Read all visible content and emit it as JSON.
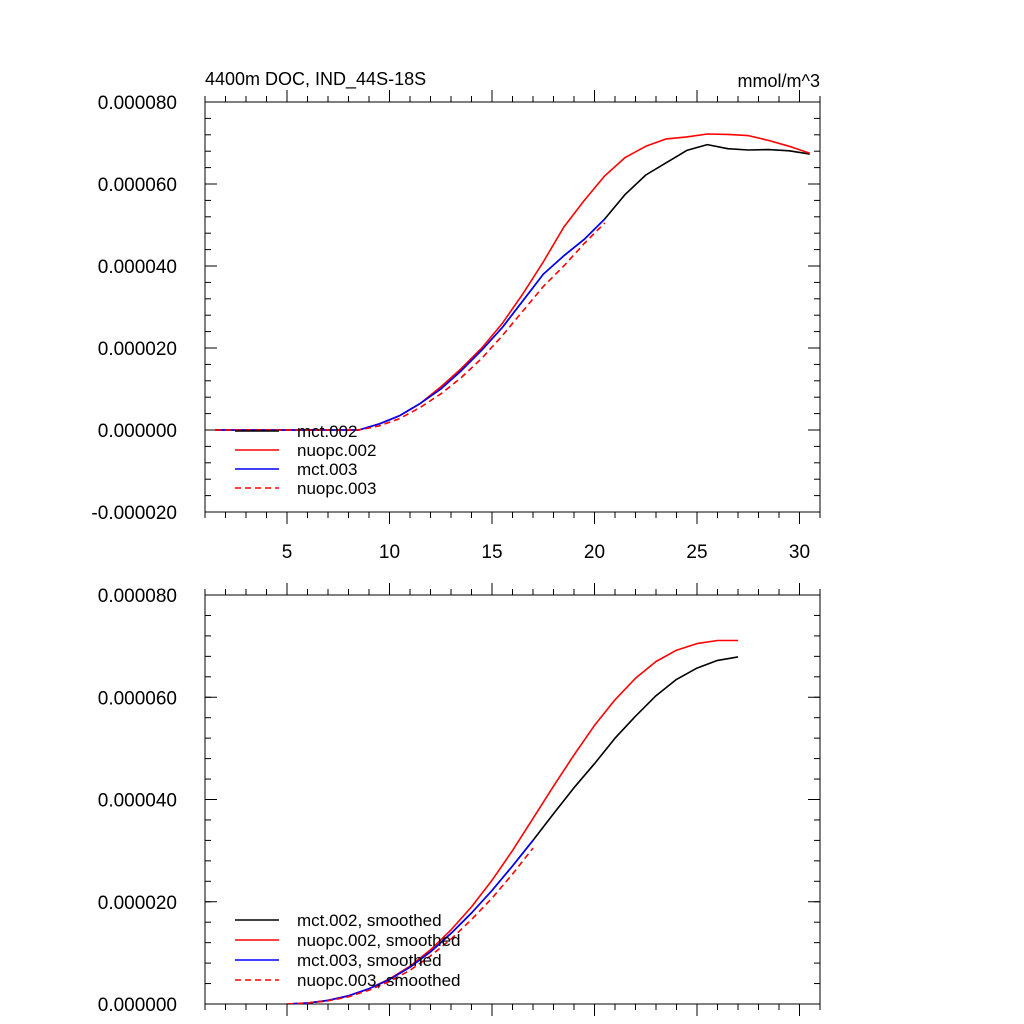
{
  "chart_data": [
    {
      "type": "line",
      "title": "4400m DOC, IND_44S-18S",
      "units": "mmol/m^3",
      "xlim": [
        1,
        31
      ],
      "ylim": [
        -2e-05,
        8e-05
      ],
      "xticks": [
        5,
        10,
        15,
        20,
        25,
        30
      ],
      "xtick_labels": [
        "5",
        "10",
        "15",
        "20",
        "25",
        "30"
      ],
      "yticks": [
        -2e-05,
        0,
        2e-05,
        4e-05,
        6e-05,
        8e-05
      ],
      "ytick_labels": [
        "-0.000020",
        "0.000000",
        "0.000020",
        "0.000040",
        "0.000060",
        "0.000080"
      ],
      "legend_position": "bottom-left",
      "series": [
        {
          "name": "mct.002",
          "color": "#000000",
          "dash": "solid",
          "x": [
            1.5,
            2.5,
            3.5,
            4.5,
            5.5,
            6.5,
            7.5,
            8.5,
            9.5,
            10.5,
            11.5,
            12.5,
            13.5,
            14.5,
            15.5,
            16.5,
            17.5,
            18.5,
            19.5,
            20.5,
            21.5,
            22.5,
            23.5,
            24.5,
            25.5,
            26.5,
            27.5,
            28.5,
            29.5,
            30.5
          ],
          "values": [
            0,
            0,
            0,
            0,
            0,
            0,
            0,
            0,
            1.5e-06,
            3.5e-06,
            6.5e-06,
            1e-05,
            1.45e-05,
            1.95e-05,
            2.5e-05,
            3.15e-05,
            3.8e-05,
            4.25e-05,
            4.65e-05,
            5.15e-05,
            5.75e-05,
            6.22e-05,
            6.52e-05,
            6.82e-05,
            6.96e-05,
            6.86e-05,
            6.83e-05,
            6.84e-05,
            6.81e-05,
            6.73e-05
          ]
        },
        {
          "name": "nuopc.002",
          "color": "#ff0000",
          "dash": "solid",
          "x": [
            1.5,
            2.5,
            3.5,
            4.5,
            5.5,
            6.5,
            7.5,
            8.5,
            9.5,
            10.5,
            11.5,
            12.5,
            13.5,
            14.5,
            15.5,
            16.5,
            17.5,
            18.5,
            19.5,
            20.5,
            21.5,
            22.5,
            23.5,
            24.5,
            25.5,
            26.5,
            27.5,
            28.5,
            29.5,
            30.5
          ],
          "values": [
            0,
            0,
            0,
            0,
            0,
            0,
            0,
            0,
            1.5e-06,
            3.5e-06,
            6.5e-06,
            1.05e-05,
            1.5e-05,
            2e-05,
            2.6e-05,
            3.32e-05,
            4.1e-05,
            4.95e-05,
            5.6e-05,
            6.2e-05,
            6.65e-05,
            6.92e-05,
            7.1e-05,
            7.15e-05,
            7.22e-05,
            7.21e-05,
            7.18e-05,
            7.06e-05,
            6.92e-05,
            6.75e-05
          ]
        },
        {
          "name": "mct.003",
          "color": "#0000ff",
          "dash": "solid",
          "x": [
            1.5,
            2.5,
            3.5,
            4.5,
            5.5,
            6.5,
            7.5,
            8.5,
            9.5,
            10.5,
            11.5,
            12.5,
            13.5,
            14.5,
            15.5,
            16.5,
            17.5,
            18.5,
            19.5,
            20.5
          ],
          "values": [
            0,
            0,
            0,
            0,
            0,
            0,
            0,
            0,
            1.5e-06,
            3.5e-06,
            6.5e-06,
            1e-05,
            1.45e-05,
            1.95e-05,
            2.5e-05,
            3.15e-05,
            3.8e-05,
            4.25e-05,
            4.65e-05,
            5.15e-05
          ]
        },
        {
          "name": "nuopc.003",
          "color": "#ff0000",
          "dash": "dashed",
          "x": [
            1.5,
            2.5,
            3.5,
            4.5,
            5.5,
            6.5,
            7.5,
            8.5,
            9.5,
            10.5,
            11.5,
            12.5,
            13.5,
            14.5,
            15.5,
            16.5,
            17.5,
            18.5,
            19.5,
            20.5
          ],
          "values": [
            0,
            0,
            0,
            0,
            0,
            0,
            0,
            0,
            1e-06,
            2.8e-06,
            5.5e-06,
            8.8e-06,
            1.28e-05,
            1.75e-05,
            2.3e-05,
            2.9e-05,
            3.5e-05,
            4e-05,
            4.55e-05,
            5.05e-05
          ]
        }
      ]
    },
    {
      "type": "line",
      "title": "",
      "xlim": [
        1,
        31
      ],
      "ylim": [
        0,
        8e-05
      ],
      "xticks": [
        5,
        10,
        15,
        20,
        25,
        30
      ],
      "yticks": [
        0,
        2e-05,
        4e-05,
        6e-05,
        8e-05
      ],
      "ytick_labels": [
        "0.000000",
        "0.000020",
        "0.000040",
        "0.000060",
        "0.000080"
      ],
      "legend_position": "bottom-left",
      "series": [
        {
          "name": "mct.002, smoothed",
          "color": "#000000",
          "dash": "solid",
          "x": [
            5,
            6,
            7,
            8,
            9,
            10,
            11,
            12,
            13,
            14,
            15,
            16,
            17,
            18,
            19,
            20,
            21,
            22,
            23,
            24,
            25,
            26,
            27
          ],
          "values": [
            0,
            2e-07,
            7e-07,
            1.6e-06,
            3e-06,
            4.8e-06,
            7.2e-06,
            1.02e-05,
            1.38e-05,
            1.78e-05,
            2.22e-05,
            2.7e-05,
            3.2e-05,
            3.72e-05,
            4.23e-05,
            4.7e-05,
            5.2e-05,
            5.63e-05,
            6.03e-05,
            6.35e-05,
            6.57e-05,
            6.72e-05,
            6.79e-05
          ]
        },
        {
          "name": "nuopc.002, smoothed",
          "color": "#ff0000",
          "dash": "solid",
          "x": [
            5,
            6,
            7,
            8,
            9,
            10,
            11,
            12,
            13,
            14,
            15,
            16,
            17,
            18,
            19,
            20,
            21,
            22,
            23,
            24,
            25,
            26,
            27
          ],
          "values": [
            0,
            2e-07,
            7e-07,
            1.6e-06,
            3e-06,
            4.9e-06,
            7.4e-06,
            1.06e-05,
            1.45e-05,
            1.9e-05,
            2.42e-05,
            3e-05,
            3.63e-05,
            4.26e-05,
            4.87e-05,
            5.45e-05,
            5.95e-05,
            6.37e-05,
            6.7e-05,
            6.92e-05,
            7.05e-05,
            7.11e-05,
            7.11e-05
          ]
        },
        {
          "name": "mct.003, smoothed",
          "color": "#0000ff",
          "dash": "solid",
          "x": [
            5,
            6,
            7,
            8,
            9,
            10,
            11,
            12,
            13,
            14,
            15,
            16,
            17
          ],
          "values": [
            0,
            2e-07,
            7e-07,
            1.6e-06,
            3e-06,
            4.8e-06,
            7.2e-06,
            1.02e-05,
            1.38e-05,
            1.78e-05,
            2.22e-05,
            2.7e-05,
            3.2e-05
          ]
        },
        {
          "name": "nuopc.003, smoothed",
          "color": "#ff0000",
          "dash": "dashed",
          "x": [
            5,
            6,
            7,
            8,
            9,
            10,
            11,
            12,
            13,
            14,
            15,
            16,
            17
          ],
          "values": [
            0,
            2e-07,
            6e-07,
            1.4e-06,
            2.7e-06,
            4.4e-06,
            6.6e-06,
            9.4e-06,
            1.27e-05,
            1.65e-05,
            2.07e-05,
            2.54e-05,
            3.05e-05
          ]
        }
      ]
    }
  ]
}
